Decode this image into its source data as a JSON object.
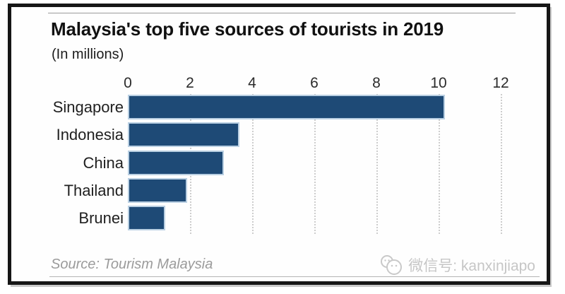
{
  "chart_data": {
    "type": "bar",
    "orientation": "horizontal",
    "title": "Malaysia's top five sources of tourists in 2019",
    "subtitle": "(In millions)",
    "categories": [
      "Singapore",
      "Indonesia",
      "China",
      "Thailand",
      "Brunei"
    ],
    "values": [
      10.2,
      3.6,
      3.1,
      1.9,
      1.2
    ],
    "xlabel": "",
    "ylabel": "",
    "xlim": [
      0,
      12
    ],
    "xticks": [
      0,
      2,
      4,
      6,
      8,
      10,
      12
    ],
    "grid": "vertical dotted gridlines at ticks 2-12",
    "legend": "none",
    "bar_color": "#1e4a76",
    "bar_edge_color": "#b9cfe2",
    "grid_color": "#cdcdcd"
  },
  "footer": {
    "source": "Source: Tourism Malaysia",
    "watermark_label": "微信号: kanxinjiapo",
    "watermark_icon": "wechat-chat-bubbles"
  },
  "colors": {
    "frame_border": "#161616",
    "title_text": "#111111",
    "tick_text": "#2b2b2b",
    "category_text": "#1f1f1f",
    "source_text": "#9b9b9b",
    "watermark_text": "#c6c6c6",
    "rule_line": "#9a9a9a"
  }
}
